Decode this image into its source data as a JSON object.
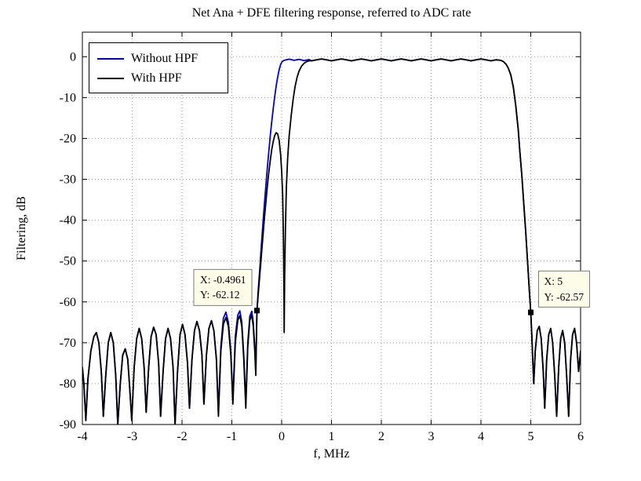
{
  "figure": {
    "background": "#ffffff"
  },
  "chart_data": {
    "type": "line",
    "title": "Net Ana + DFE filtering response, referred to ADC rate",
    "xlabel": "f, MHz",
    "ylabel": "Filtering, dB",
    "xlim": [
      -4,
      6
    ],
    "ylim": [
      -90,
      6
    ],
    "x_ticks": [
      -4,
      -3,
      -2,
      -1,
      0,
      1,
      2,
      3,
      4,
      5,
      6
    ],
    "y_ticks": [
      0,
      -10,
      -20,
      -30,
      -40,
      -50,
      -60,
      -70,
      -80,
      -90
    ],
    "grid": true,
    "grid_color": "#999999",
    "legend_position": "top-left",
    "series": [
      {
        "name": "Without HPF",
        "color": "#0000cc",
        "width": 1.8,
        "segments": [
          "left_stopband_main",
          "left_stopband_blue_tail",
          "left_edge_blue",
          "passband",
          "right_edge",
          "right_stopband"
        ]
      },
      {
        "name": "With HPF",
        "color": "#000000",
        "width": 1.8,
        "segments": [
          "left_stopband_main",
          "left_stopband_black_tail",
          "left_edge_black",
          "passband",
          "right_edge",
          "right_stopband"
        ]
      }
    ],
    "segments": {
      "left_stopband_main": [
        [
          -4.0,
          -76
        ],
        [
          -3.97,
          -80
        ],
        [
          -3.93,
          -89
        ],
        [
          -3.89,
          -79
        ],
        [
          -3.83,
          -72
        ],
        [
          -3.77,
          -68.5
        ],
        [
          -3.72,
          -67.5
        ],
        [
          -3.67,
          -70
        ],
        [
          -3.62,
          -77
        ],
        [
          -3.58,
          -88
        ],
        [
          -3.53,
          -78
        ],
        [
          -3.48,
          -70
        ],
        [
          -3.43,
          -67.5
        ],
        [
          -3.38,
          -70
        ],
        [
          -3.33,
          -78
        ],
        [
          -3.29,
          -90
        ],
        [
          -3.24,
          -80
        ],
        [
          -3.19,
          -73
        ],
        [
          -3.14,
          -71.5
        ],
        [
          -3.09,
          -74
        ],
        [
          -3.05,
          -81
        ],
        [
          -3.01,
          -89
        ],
        [
          -2.96,
          -76
        ],
        [
          -2.91,
          -69
        ],
        [
          -2.86,
          -66.5
        ],
        [
          -2.81,
          -69
        ],
        [
          -2.76,
          -76
        ],
        [
          -2.72,
          -87
        ],
        [
          -2.67,
          -76
        ],
        [
          -2.62,
          -68.5
        ],
        [
          -2.57,
          -66.2
        ],
        [
          -2.52,
          -68
        ],
        [
          -2.47,
          -75
        ],
        [
          -2.43,
          -88
        ],
        [
          -2.38,
          -77
        ],
        [
          -2.33,
          -69
        ],
        [
          -2.28,
          -66.5
        ],
        [
          -2.23,
          -69
        ],
        [
          -2.18,
          -76
        ],
        [
          -2.14,
          -90
        ],
        [
          -2.09,
          -77
        ],
        [
          -2.04,
          -68
        ],
        [
          -1.99,
          -65.5
        ],
        [
          -1.94,
          -68
        ],
        [
          -1.89,
          -75
        ],
        [
          -1.85,
          -86
        ],
        [
          -1.8,
          -74
        ],
        [
          -1.75,
          -67
        ],
        [
          -1.7,
          -64.8
        ],
        [
          -1.65,
          -67
        ],
        [
          -1.6,
          -73
        ],
        [
          -1.56,
          -85
        ],
        [
          -1.51,
          -73
        ],
        [
          -1.46,
          -66.5
        ],
        [
          -1.41,
          -64.6
        ],
        [
          -1.36,
          -67
        ]
      ],
      "left_stopband_black_tail": [
        [
          -1.31,
          -74
        ],
        [
          -1.27,
          -88
        ],
        [
          -1.22,
          -72
        ],
        [
          -1.17,
          -65.5
        ],
        [
          -1.12,
          -63.8
        ],
        [
          -1.07,
          -66
        ],
        [
          -1.02,
          -73
        ],
        [
          -0.98,
          -85
        ],
        [
          -0.93,
          -70
        ],
        [
          -0.88,
          -64.5
        ],
        [
          -0.84,
          -63.3
        ],
        [
          -0.8,
          -66
        ],
        [
          -0.76,
          -74
        ],
        [
          -0.72,
          -86
        ],
        [
          -0.68,
          -71
        ],
        [
          -0.64,
          -64.5
        ],
        [
          -0.6,
          -63.2
        ],
        [
          -0.57,
          -66
        ],
        [
          -0.54,
          -72
        ],
        [
          -0.52,
          -78
        ]
      ],
      "left_stopband_blue_tail": [
        [
          -1.31,
          -74
        ],
        [
          -1.27,
          -87
        ],
        [
          -1.22,
          -71
        ],
        [
          -1.17,
          -64
        ],
        [
          -1.12,
          -62.5
        ],
        [
          -1.07,
          -65
        ],
        [
          -1.02,
          -72
        ],
        [
          -0.98,
          -84
        ],
        [
          -0.93,
          -68.5
        ],
        [
          -0.88,
          -63.2
        ],
        [
          -0.84,
          -62.2
        ],
        [
          -0.8,
          -65
        ],
        [
          -0.76,
          -73
        ],
        [
          -0.72,
          -85
        ],
        [
          -0.68,
          -70
        ],
        [
          -0.64,
          -63.5
        ],
        [
          -0.6,
          -62.3
        ],
        [
          -0.57,
          -65
        ],
        [
          -0.54,
          -71
        ],
        [
          -0.52,
          -77
        ]
      ],
      "left_edge_blue": [
        [
          -0.4961,
          -62.12
        ],
        [
          -0.47,
          -57
        ],
        [
          -0.44,
          -52
        ],
        [
          -0.41,
          -46.5
        ],
        [
          -0.38,
          -41.5
        ],
        [
          -0.35,
          -36.5
        ],
        [
          -0.32,
          -32
        ],
        [
          -0.29,
          -27.5
        ],
        [
          -0.26,
          -23.5
        ],
        [
          -0.23,
          -19.5
        ],
        [
          -0.2,
          -16
        ],
        [
          -0.17,
          -12.8
        ],
        [
          -0.14,
          -9.8
        ],
        [
          -0.11,
          -7.2
        ],
        [
          -0.08,
          -5
        ],
        [
          -0.05,
          -3.2
        ],
        [
          -0.02,
          -1.9
        ],
        [
          0.01,
          -1.2
        ],
        [
          0.05,
          -0.9
        ],
        [
          0.15,
          -0.6
        ],
        [
          0.25,
          -0.9
        ],
        [
          0.35,
          -0.65
        ],
        [
          0.45,
          -0.95
        ],
        [
          0.55,
          -0.7
        ]
      ],
      "left_edge_black": [
        [
          -0.4961,
          -62.12
        ],
        [
          -0.47,
          -58
        ],
        [
          -0.44,
          -53.5
        ],
        [
          -0.41,
          -49
        ],
        [
          -0.38,
          -44.5
        ],
        [
          -0.35,
          -40
        ],
        [
          -0.32,
          -36
        ],
        [
          -0.29,
          -32
        ],
        [
          -0.26,
          -28.5
        ],
        [
          -0.23,
          -25.5
        ],
        [
          -0.2,
          -22.8
        ],
        [
          -0.17,
          -20.8
        ],
        [
          -0.14,
          -19.3
        ],
        [
          -0.11,
          -18.6
        ],
        [
          -0.08,
          -18.9
        ],
        [
          -0.05,
          -20.5
        ],
        [
          -0.02,
          -24
        ],
        [
          0.0,
          -28
        ],
        [
          0.02,
          -34
        ],
        [
          0.035,
          -44
        ],
        [
          0.045,
          -56
        ],
        [
          0.05,
          -67.5
        ],
        [
          0.06,
          -54
        ],
        [
          0.075,
          -42
        ],
        [
          0.095,
          -32
        ],
        [
          0.12,
          -25
        ],
        [
          0.15,
          -19.5
        ],
        [
          0.19,
          -14.5
        ],
        [
          0.23,
          -10.5
        ],
        [
          0.27,
          -7.3
        ],
        [
          0.31,
          -5
        ],
        [
          0.35,
          -3.5
        ],
        [
          0.4,
          -2.3
        ],
        [
          0.45,
          -1.6
        ],
        [
          0.5,
          -1.2
        ],
        [
          0.55,
          -1.0
        ]
      ],
      "passband": [
        [
          0.6,
          -1.0
        ],
        [
          0.7,
          -0.75
        ],
        [
          0.8,
          -0.55
        ],
        [
          0.9,
          -0.75
        ],
        [
          1.0,
          -1.0
        ],
        [
          1.1,
          -0.75
        ],
        [
          1.2,
          -0.55
        ],
        [
          1.3,
          -0.75
        ],
        [
          1.4,
          -1.0
        ],
        [
          1.5,
          -0.75
        ],
        [
          1.6,
          -0.55
        ],
        [
          1.7,
          -0.75
        ],
        [
          1.8,
          -1.0
        ],
        [
          1.9,
          -0.75
        ],
        [
          2.0,
          -0.55
        ],
        [
          2.1,
          -0.75
        ],
        [
          2.2,
          -1.0
        ],
        [
          2.3,
          -0.75
        ],
        [
          2.4,
          -0.55
        ],
        [
          2.5,
          -0.75
        ],
        [
          2.6,
          -1.0
        ],
        [
          2.7,
          -0.75
        ],
        [
          2.8,
          -0.55
        ],
        [
          2.9,
          -0.75
        ],
        [
          3.0,
          -1.0
        ],
        [
          3.1,
          -0.75
        ],
        [
          3.2,
          -0.55
        ],
        [
          3.3,
          -0.75
        ],
        [
          3.4,
          -1.0
        ],
        [
          3.5,
          -0.75
        ],
        [
          3.6,
          -0.55
        ],
        [
          3.7,
          -0.75
        ],
        [
          3.8,
          -1.0
        ],
        [
          3.9,
          -0.75
        ],
        [
          4.0,
          -0.55
        ],
        [
          4.1,
          -0.75
        ],
        [
          4.2,
          -1.0
        ],
        [
          4.3,
          -0.75
        ],
        [
          4.4,
          -0.9
        ]
      ],
      "right_edge": [
        [
          4.45,
          -1.2
        ],
        [
          4.5,
          -1.8
        ],
        [
          4.55,
          -2.8
        ],
        [
          4.6,
          -4.5
        ],
        [
          4.65,
          -7.5
        ],
        [
          4.7,
          -12
        ],
        [
          4.75,
          -18
        ],
        [
          4.78,
          -23
        ],
        [
          4.82,
          -29
        ],
        [
          4.86,
          -36
        ],
        [
          4.9,
          -43
        ],
        [
          4.94,
          -51
        ],
        [
          4.97,
          -57
        ],
        [
          5.0,
          -62.57
        ]
      ],
      "right_stopband": [
        [
          5.02,
          -68
        ],
        [
          5.04,
          -74
        ],
        [
          5.06,
          -80
        ],
        [
          5.09,
          -72
        ],
        [
          5.13,
          -67
        ],
        [
          5.17,
          -66
        ],
        [
          5.21,
          -69
        ],
        [
          5.25,
          -77
        ],
        [
          5.28,
          -86
        ],
        [
          5.32,
          -74
        ],
        [
          5.36,
          -68
        ],
        [
          5.4,
          -66.5
        ],
        [
          5.44,
          -70
        ],
        [
          5.48,
          -78
        ],
        [
          5.52,
          -88
        ],
        [
          5.56,
          -76
        ],
        [
          5.6,
          -69
        ],
        [
          5.64,
          -67
        ],
        [
          5.68,
          -70
        ],
        [
          5.72,
          -78
        ],
        [
          5.76,
          -88
        ],
        [
          5.8,
          -74
        ],
        [
          5.84,
          -68
        ],
        [
          5.88,
          -66.5
        ],
        [
          5.92,
          -70
        ],
        [
          5.96,
          -77
        ],
        [
          6.0,
          -72
        ]
      ]
    },
    "markers": [
      {
        "x": -0.4961,
        "y": -62.12,
        "line1": "X: -0.4961",
        "line2": "Y: -62.12",
        "side": "left"
      },
      {
        "x": 5,
        "y": -62.57,
        "line1": "X: 5",
        "line2": "Y: -62.57",
        "side": "right"
      }
    ]
  }
}
